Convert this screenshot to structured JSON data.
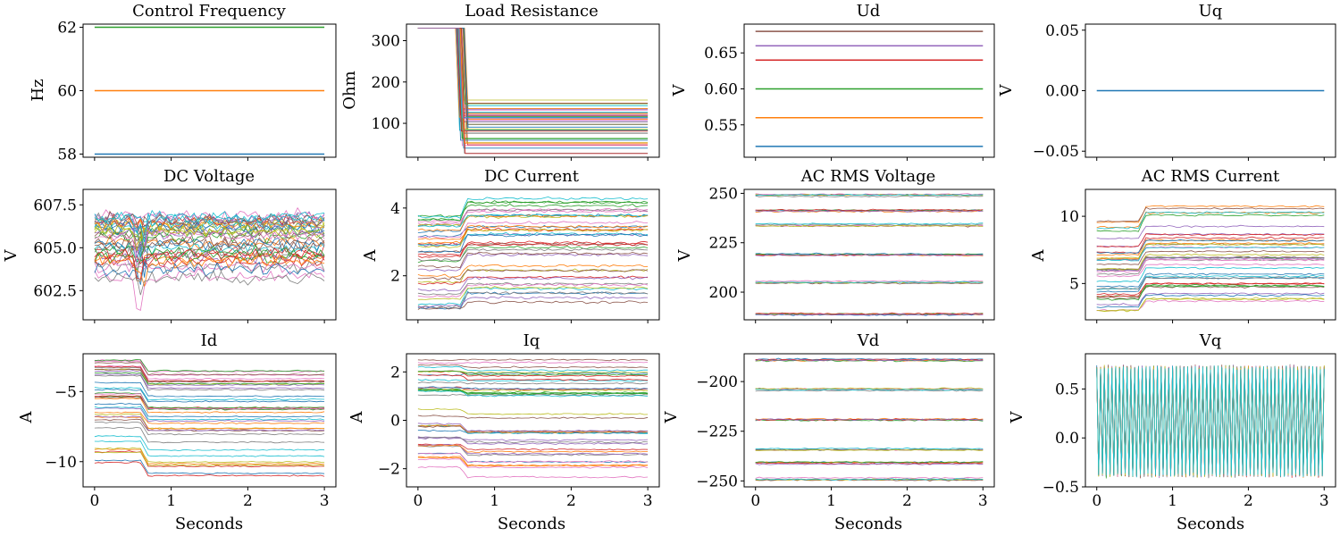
{
  "chart_data": [
    {
      "type": "line",
      "title": "Control Frequency",
      "ylabel": "Hz",
      "xlabel": "",
      "ylim": [
        57.9,
        62.1
      ],
      "yticks": [
        58,
        60,
        62
      ],
      "ytick_labels": [
        "58",
        "60",
        "62"
      ],
      "xlim": [
        -0.15,
        3.15
      ],
      "xticks": [
        0,
        1,
        2,
        3
      ],
      "show_xticklabels": false,
      "kind": "flat",
      "levels": [
        58,
        60,
        62
      ]
    },
    {
      "type": "line",
      "title": "Load Resistance",
      "ylabel": "Ohm",
      "xlabel": "",
      "ylim": [
        18,
        340
      ],
      "yticks": [
        100,
        200,
        300
      ],
      "ytick_labels": [
        "100",
        "200",
        "300"
      ],
      "xlim": [
        -0.15,
        3.15
      ],
      "xticks": [
        0,
        1,
        2,
        3
      ],
      "show_xticklabels": false,
      "kind": "step",
      "before": [
        330
      ],
      "after_min": 25,
      "after_max": 160,
      "step_time": 0.55
    },
    {
      "type": "line",
      "title": "Ud",
      "ylabel": "V",
      "xlabel": "",
      "ylim": [
        0.505,
        0.69
      ],
      "yticks": [
        0.55,
        0.6,
        0.65
      ],
      "ytick_labels": [
        "0.55",
        "0.60",
        "0.65"
      ],
      "xlim": [
        -0.15,
        3.15
      ],
      "xticks": [
        0,
        1,
        2,
        3
      ],
      "show_xticklabels": false,
      "kind": "flat",
      "levels": [
        0.52,
        0.56,
        0.6,
        0.64,
        0.66,
        0.68
      ]
    },
    {
      "type": "line",
      "title": "Uq",
      "ylabel": "V",
      "xlabel": "",
      "ylim": [
        -0.055,
        0.055
      ],
      "yticks": [
        -0.05,
        0,
        0.05
      ],
      "ytick_labels": [
        "−0.05",
        "0.00",
        "0.05"
      ],
      "xlim": [
        -0.15,
        3.15
      ],
      "xticks": [
        0,
        1,
        2,
        3
      ],
      "show_xticklabels": false,
      "kind": "flat",
      "levels": [
        0
      ]
    },
    {
      "type": "line",
      "title": "DC Voltage",
      "ylabel": "V",
      "xlabel": "",
      "ylim": [
        600.8,
        608.4
      ],
      "yticks": [
        602.5,
        605,
        607.5
      ],
      "ytick_labels": [
        "602.5",
        "605.0",
        "607.5"
      ],
      "xlim": [
        -0.15,
        3.15
      ],
      "xticks": [
        0,
        1,
        2,
        3
      ],
      "show_xticklabels": false,
      "kind": "noise",
      "center_min": 603.2,
      "center_max": 606.9,
      "noise": 0.45,
      "dip_time": 0.6,
      "dip_depth": 1.8
    },
    {
      "type": "line",
      "title": "DC Current",
      "ylabel": "A",
      "xlabel": "",
      "ylim": [
        0.7,
        4.55
      ],
      "yticks": [
        2,
        4
      ],
      "ytick_labels": [
        "2",
        "4"
      ],
      "xlim": [
        -0.15,
        3.15
      ],
      "xticks": [
        0,
        1,
        2,
        3
      ],
      "show_xticklabels": false,
      "kind": "stepnoise",
      "before_min": 1.0,
      "before_max": 3.85,
      "after_min": 1.3,
      "after_max": 4.25,
      "step_time": 0.55,
      "noise": 0.05
    },
    {
      "type": "line",
      "title": "AC RMS Voltage",
      "ylabel": "V",
      "xlabel": "",
      "ylim": [
        186,
        252
      ],
      "yticks": [
        200,
        225,
        250
      ],
      "ytick_labels": [
        "200",
        "225",
        "250"
      ],
      "xlim": [
        -0.15,
        3.15
      ],
      "xticks": [
        0,
        1,
        2,
        3
      ],
      "show_xticklabels": false,
      "kind": "bands",
      "levels": [
        189,
        205,
        219,
        234,
        241,
        249
      ],
      "noise": 0.45
    },
    {
      "type": "line",
      "title": "AC RMS Current",
      "ylabel": "A",
      "xlabel": "",
      "ylim": [
        2.3,
        12
      ],
      "yticks": [
        5,
        10
      ],
      "ytick_labels": [
        "5",
        "10"
      ],
      "xlim": [
        -0.15,
        3.15
      ],
      "xticks": [
        0,
        1,
        2,
        3
      ],
      "show_xticklabels": false,
      "kind": "stepnoise",
      "before_min": 2.8,
      "before_max": 10.1,
      "after_min": 3.6,
      "after_max": 11.2,
      "step_time": 0.55,
      "noise": 0.08
    },
    {
      "type": "line",
      "title": "Id",
      "ylabel": "A",
      "xlabel": "Seconds",
      "ylim": [
        -11.8,
        -2.3
      ],
      "yticks": [
        -10,
        -5
      ],
      "ytick_labels": [
        "−10",
        "−5"
      ],
      "xlim": [
        -0.15,
        3.15
      ],
      "xticks": [
        0,
        1,
        2,
        3
      ],
      "xtick_labels": [
        "0",
        "1",
        "2",
        "3"
      ],
      "show_xticklabels": true,
      "kind": "stepnoise",
      "before_min": -10.1,
      "before_max": -2.7,
      "after_min": -11.0,
      "after_max": -3.6,
      "step_time": 0.6,
      "noise": 0.06
    },
    {
      "type": "line",
      "title": "Iq",
      "ylabel": "A",
      "xlabel": "Seconds",
      "ylim": [
        -2.75,
        2.75
      ],
      "yticks": [
        -2,
        0,
        2
      ],
      "ytick_labels": [
        "−2",
        "0",
        "2"
      ],
      "xlim": [
        -0.15,
        3.15
      ],
      "xticks": [
        0,
        1,
        2,
        3
      ],
      "xtick_labels": [
        "0",
        "1",
        "2",
        "3"
      ],
      "show_xticklabels": true,
      "kind": "stepnoise",
      "before_min": -2.0,
      "before_max": 2.5,
      "after_min": -2.3,
      "after_max": 2.5,
      "step_time": 0.55,
      "noise": 0.04
    },
    {
      "type": "line",
      "title": "Vd",
      "ylabel": "V",
      "xlabel": "Seconds",
      "ylim": [
        -253,
        -186
      ],
      "yticks": [
        -250,
        -225,
        -200
      ],
      "ytick_labels": [
        "−250",
        "−225",
        "−200"
      ],
      "xlim": [
        -0.15,
        3.15
      ],
      "xticks": [
        0,
        1,
        2,
        3
      ],
      "xtick_labels": [
        "0",
        "1",
        "2",
        "3"
      ],
      "show_xticklabels": true,
      "kind": "bands",
      "levels": [
        -189,
        -204,
        -219,
        -234,
        -241,
        -249
      ],
      "noise": 0.45
    },
    {
      "type": "line",
      "title": "Vq",
      "ylabel": "V",
      "xlabel": "Seconds",
      "ylim": [
        -0.5,
        0.86
      ],
      "yticks": [
        -0.5,
        0,
        0.5
      ],
      "ytick_labels": [
        "−0.5",
        "0.0",
        "0.5"
      ],
      "xlim": [
        -0.15,
        3.15
      ],
      "xticks": [
        0,
        1,
        2,
        3
      ],
      "xtick_labels": [
        "0",
        "1",
        "2",
        "3"
      ],
      "show_xticklabels": true,
      "kind": "oscillate",
      "low": -0.38,
      "high": 0.72,
      "noise": 0.03
    }
  ],
  "colors": [
    "#1f77b4",
    "#ff7f0e",
    "#2ca02c",
    "#d62728",
    "#9467bd",
    "#8c564b",
    "#e377c2",
    "#7f7f7f",
    "#bcbd22",
    "#17becf"
  ]
}
